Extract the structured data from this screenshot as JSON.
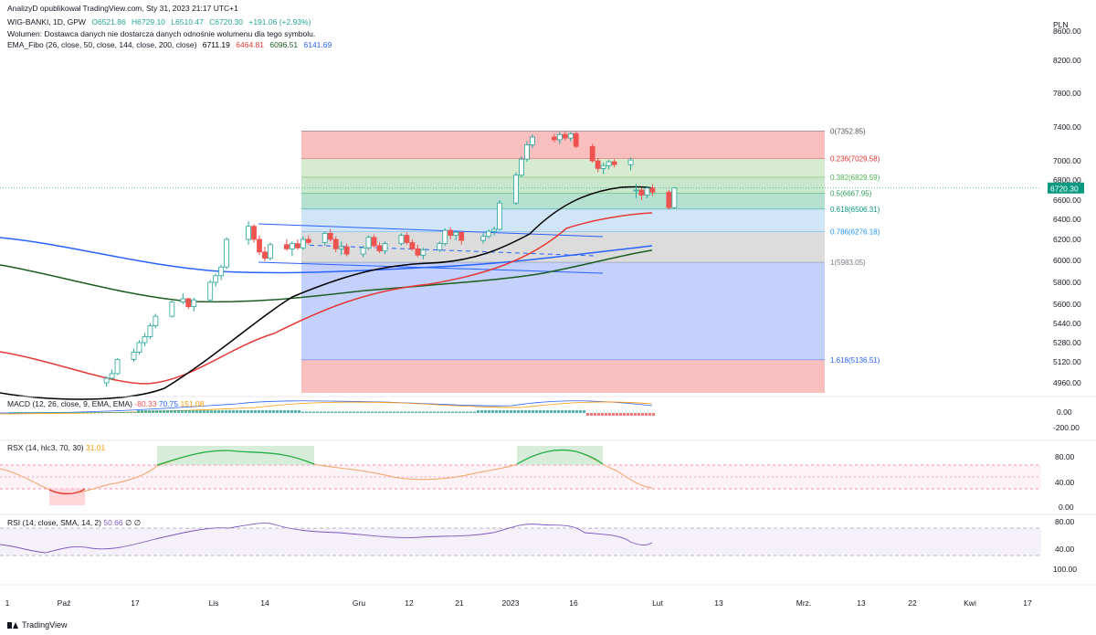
{
  "header": {
    "published": "AnalizyD opublikował TradingView.com, Sty 31, 2023 21:17 UTC+1",
    "symbol": "WIG-BANKI, 1D, GPW",
    "ohlc": {
      "O": "O6521.86",
      "H": "H6729.10",
      "L": "L6510.47",
      "C": "C6720.30",
      "change": "+191.06 (+2.93%)"
    },
    "volume_note": "Wolumen: Dostawca danych nie dostarcza danych odnośnie wolumenu dla tego symbolu.",
    "ema_title": "EMA_Fibo (26, close, 50, close, 144, close, 200, close)",
    "ema_values": [
      "6711.19",
      "6464.81",
      "6096.51",
      "6141.69"
    ]
  },
  "currency": "PLN",
  "price_axis_labels": [
    "8600.00",
    "8200.00",
    "7800.00",
    "7400.00",
    "7000.00",
    "6800.00",
    "6600.00",
    "6400.00",
    "6200.00",
    "6000.00",
    "5800.00",
    "5600.00",
    "5440.00",
    "5280.00",
    "5120.00",
    "4960.00"
  ],
  "last_price": "6720.30",
  "fib_levels": [
    {
      "label": "0(7352.85)",
      "color": "#555555"
    },
    {
      "label": "0.236(7029.58)",
      "color": "#e03030"
    },
    {
      "label": "0.382(6829.59)",
      "color": "#4caf50"
    },
    {
      "label": "0.5(6667.95)",
      "color": "#2e9e5a"
    },
    {
      "label": "0.618(6506.31)",
      "color": "#089981"
    },
    {
      "label": "0.786(6276.18)",
      "color": "#2196f3"
    },
    {
      "label": "1(5983.05)",
      "color": "#787b86"
    },
    {
      "label": "1.618(5136.51)",
      "color": "#2962ff"
    }
  ],
  "macd": {
    "title": "MACD (12, 26, close, 9, EMA, EMA)",
    "values": [
      "-80.33",
      "70.75",
      "151.08"
    ],
    "axis": [
      "0.00",
      "-200.00"
    ]
  },
  "rsx": {
    "title": "RSX (14, hlc3, 70, 30)",
    "value": "31.01",
    "axis": [
      "80.00",
      "40.00",
      "0.00"
    ]
  },
  "rsi": {
    "title": "RSI (14, close, SMA, 14, 2)",
    "values": [
      "50.66",
      "∅",
      "∅"
    ],
    "axis": [
      "80.00",
      "40.00",
      "100.00"
    ]
  },
  "time_axis": [
    "1",
    "Paź",
    "17",
    "Lis",
    "14",
    "Gru",
    "12",
    "21",
    "2023",
    "16",
    "Lut",
    "13",
    "Mrz.",
    "13",
    "22",
    "Kwi",
    "17"
  ],
  "footer_brand": "TradingView",
  "colors": {
    "up": "#26a69a",
    "down": "#ef5350",
    "ema26": "#000000",
    "ema50": "#e53935",
    "ema144": "#1b5e20",
    "ema200": "#2962ff"
  },
  "chart_data": {
    "type": "candlestick",
    "title": "WIG-BANKI, 1D, GPW",
    "ylabel": "PLN",
    "ylim": [
      4880,
      8680
    ],
    "grid": false,
    "candles_approx": [
      {
        "d": "2022-10-19",
        "o": 4960,
        "h": 5010,
        "l": 4930,
        "c": 4995
      },
      {
        "d": "2022-10-20",
        "o": 4995,
        "h": 5060,
        "l": 4980,
        "c": 5030
      },
      {
        "d": "2022-10-21",
        "o": 5030,
        "h": 5150,
        "l": 5020,
        "c": 5140
      },
      {
        "d": "2022-10-24",
        "o": 5140,
        "h": 5230,
        "l": 5120,
        "c": 5200
      },
      {
        "d": "2022-10-25",
        "o": 5200,
        "h": 5300,
        "l": 5180,
        "c": 5280
      },
      {
        "d": "2022-10-26",
        "o": 5280,
        "h": 5360,
        "l": 5250,
        "c": 5330
      },
      {
        "d": "2022-10-27",
        "o": 5330,
        "h": 5440,
        "l": 5310,
        "c": 5420
      },
      {
        "d": "2022-10-28",
        "o": 5420,
        "h": 5520,
        "l": 5400,
        "c": 5500
      },
      {
        "d": "2022-10-31",
        "o": 5500,
        "h": 5630,
        "l": 5490,
        "c": 5620
      },
      {
        "d": "2022-11-02",
        "o": 5620,
        "h": 5700,
        "l": 5600,
        "c": 5650
      },
      {
        "d": "2022-11-03",
        "o": 5650,
        "h": 5660,
        "l": 5560,
        "c": 5580
      },
      {
        "d": "2022-11-04",
        "o": 5580,
        "h": 5660,
        "l": 5540,
        "c": 5640
      },
      {
        "d": "2022-11-07",
        "o": 5640,
        "h": 5820,
        "l": 5620,
        "c": 5800
      },
      {
        "d": "2022-11-08",
        "o": 5800,
        "h": 5880,
        "l": 5760,
        "c": 5860
      },
      {
        "d": "2022-11-09",
        "o": 5860,
        "h": 5960,
        "l": 5820,
        "c": 5940
      },
      {
        "d": "2022-11-10",
        "o": 5940,
        "h": 6220,
        "l": 5920,
        "c": 6200
      },
      {
        "d": "2022-11-14",
        "o": 6200,
        "h": 6380,
        "l": 6150,
        "c": 6330
      },
      {
        "d": "2022-11-15",
        "o": 6330,
        "h": 6350,
        "l": 6170,
        "c": 6200
      },
      {
        "d": "2022-11-16",
        "o": 6200,
        "h": 6240,
        "l": 6050,
        "c": 6080
      },
      {
        "d": "2022-11-17",
        "o": 6080,
        "h": 6130,
        "l": 5990,
        "c": 6020
      },
      {
        "d": "2022-11-18",
        "o": 6020,
        "h": 6170,
        "l": 6000,
        "c": 6150
      },
      {
        "d": "2022-11-21",
        "o": 6150,
        "h": 6200,
        "l": 6090,
        "c": 6110
      },
      {
        "d": "2022-11-22",
        "o": 6110,
        "h": 6180,
        "l": 6040,
        "c": 6160
      },
      {
        "d": "2022-11-23",
        "o": 6160,
        "h": 6200,
        "l": 6100,
        "c": 6120
      },
      {
        "d": "2022-11-24",
        "o": 6120,
        "h": 6230,
        "l": 6100,
        "c": 6200
      },
      {
        "d": "2022-11-25",
        "o": 6200,
        "h": 6240,
        "l": 6150,
        "c": 6170
      },
      {
        "d": "2022-11-28",
        "o": 6170,
        "h": 6280,
        "l": 6140,
        "c": 6260
      },
      {
        "d": "2022-11-29",
        "o": 6260,
        "h": 6300,
        "l": 6180,
        "c": 6200
      },
      {
        "d": "2022-11-30",
        "o": 6200,
        "h": 6230,
        "l": 6080,
        "c": 6110
      },
      {
        "d": "2022-12-01",
        "o": 6110,
        "h": 6180,
        "l": 6050,
        "c": 6130
      },
      {
        "d": "2022-12-02",
        "o": 6130,
        "h": 6160,
        "l": 6040,
        "c": 6060
      },
      {
        "d": "2022-12-05",
        "o": 6060,
        "h": 6140,
        "l": 6030,
        "c": 6120
      },
      {
        "d": "2022-12-06",
        "o": 6120,
        "h": 6240,
        "l": 6100,
        "c": 6220
      },
      {
        "d": "2022-12-07",
        "o": 6220,
        "h": 6250,
        "l": 6120,
        "c": 6140
      },
      {
        "d": "2022-12-08",
        "o": 6140,
        "h": 6170,
        "l": 6070,
        "c": 6090
      },
      {
        "d": "2022-12-09",
        "o": 6090,
        "h": 6180,
        "l": 6060,
        "c": 6160
      },
      {
        "d": "2022-12-12",
        "o": 6160,
        "h": 6260,
        "l": 6140,
        "c": 6240
      },
      {
        "d": "2022-12-13",
        "o": 6240,
        "h": 6270,
        "l": 6150,
        "c": 6170
      },
      {
        "d": "2022-12-14",
        "o": 6170,
        "h": 6200,
        "l": 6090,
        "c": 6110
      },
      {
        "d": "2022-12-15",
        "o": 6110,
        "h": 6150,
        "l": 6030,
        "c": 6050
      },
      {
        "d": "2022-12-16",
        "o": 6050,
        "h": 6120,
        "l": 6010,
        "c": 6100
      },
      {
        "d": "2022-12-19",
        "o": 6100,
        "h": 6180,
        "l": 6080,
        "c": 6160
      },
      {
        "d": "2022-12-20",
        "o": 6160,
        "h": 6310,
        "l": 6140,
        "c": 6290
      },
      {
        "d": "2022-12-21",
        "o": 6290,
        "h": 6320,
        "l": 6200,
        "c": 6240
      },
      {
        "d": "2022-12-22",
        "o": 6240,
        "h": 6290,
        "l": 6190,
        "c": 6270
      },
      {
        "d": "2022-12-23",
        "o": 6270,
        "h": 6280,
        "l": 6150,
        "c": 6190
      },
      {
        "d": "2022-12-27",
        "o": 6190,
        "h": 6260,
        "l": 6160,
        "c": 6230
      },
      {
        "d": "2022-12-28",
        "o": 6230,
        "h": 6300,
        "l": 6210,
        "c": 6280
      },
      {
        "d": "2022-12-29",
        "o": 6280,
        "h": 6330,
        "l": 6240,
        "c": 6300
      },
      {
        "d": "2022-12-30",
        "o": 6300,
        "h": 6600,
        "l": 6290,
        "c": 6570
      },
      {
        "d": "2023-01-02",
        "o": 6570,
        "h": 6880,
        "l": 6550,
        "c": 6850
      },
      {
        "d": "2023-01-03",
        "o": 6850,
        "h": 7050,
        "l": 6830,
        "c": 7020
      },
      {
        "d": "2023-01-04",
        "o": 7020,
        "h": 7230,
        "l": 6990,
        "c": 7190
      },
      {
        "d": "2023-01-05",
        "o": 7190,
        "h": 7310,
        "l": 7150,
        "c": 7280
      },
      {
        "d": "2023-01-09",
        "o": 7280,
        "h": 7320,
        "l": 7220,
        "c": 7250
      },
      {
        "d": "2023-01-10",
        "o": 7250,
        "h": 7340,
        "l": 7200,
        "c": 7310
      },
      {
        "d": "2023-01-11",
        "o": 7310,
        "h": 7352,
        "l": 7240,
        "c": 7270
      },
      {
        "d": "2023-01-12",
        "o": 7270,
        "h": 7340,
        "l": 7230,
        "c": 7320
      },
      {
        "d": "2023-01-13",
        "o": 7320,
        "h": 7345,
        "l": 7150,
        "c": 7170
      },
      {
        "d": "2023-01-16",
        "o": 7170,
        "h": 7200,
        "l": 6980,
        "c": 7000
      },
      {
        "d": "2023-01-17",
        "o": 7000,
        "h": 7030,
        "l": 6880,
        "c": 6920
      },
      {
        "d": "2023-01-18",
        "o": 6920,
        "h": 6980,
        "l": 6860,
        "c": 6950
      },
      {
        "d": "2023-01-19",
        "o": 6950,
        "h": 7010,
        "l": 6910,
        "c": 6990
      },
      {
        "d": "2023-01-20",
        "o": 6990,
        "h": 7020,
        "l": 6930,
        "c": 6960
      },
      {
        "d": "2023-01-23",
        "o": 6960,
        "h": 7040,
        "l": 6900,
        "c": 7010
      },
      {
        "d": "2023-01-24",
        "o": 6700,
        "h": 6760,
        "l": 6620,
        "c": 6700
      },
      {
        "d": "2023-01-25",
        "o": 6700,
        "h": 6720,
        "l": 6600,
        "c": 6650
      },
      {
        "d": "2023-01-26",
        "o": 6650,
        "h": 6740,
        "l": 6620,
        "c": 6720
      },
      {
        "d": "2023-01-27",
        "o": 6720,
        "h": 6760,
        "l": 6640,
        "c": 6680
      },
      {
        "d": "2023-01-30",
        "o": 6680,
        "h": 6700,
        "l": 6500,
        "c": 6521.86
      },
      {
        "d": "2023-01-31",
        "o": 6521.86,
        "h": 6729.1,
        "l": 6510.47,
        "c": 6720.3
      }
    ],
    "ema_series": [
      {
        "name": "EMA 26",
        "last": 6711.19
      },
      {
        "name": "EMA 50",
        "last": 6464.81
      },
      {
        "name": "EMA 144",
        "last": 6096.51
      },
      {
        "name": "EMA 200",
        "last": 6141.69
      }
    ],
    "fibonacci": {
      "0": 7352.85,
      "0.236": 7029.58,
      "0.382": 6829.59,
      "0.5": 6667.95,
      "0.618": 6506.31,
      "0.786": 6276.18,
      "1": 5983.05,
      "1.618": 5136.51
    }
  }
}
